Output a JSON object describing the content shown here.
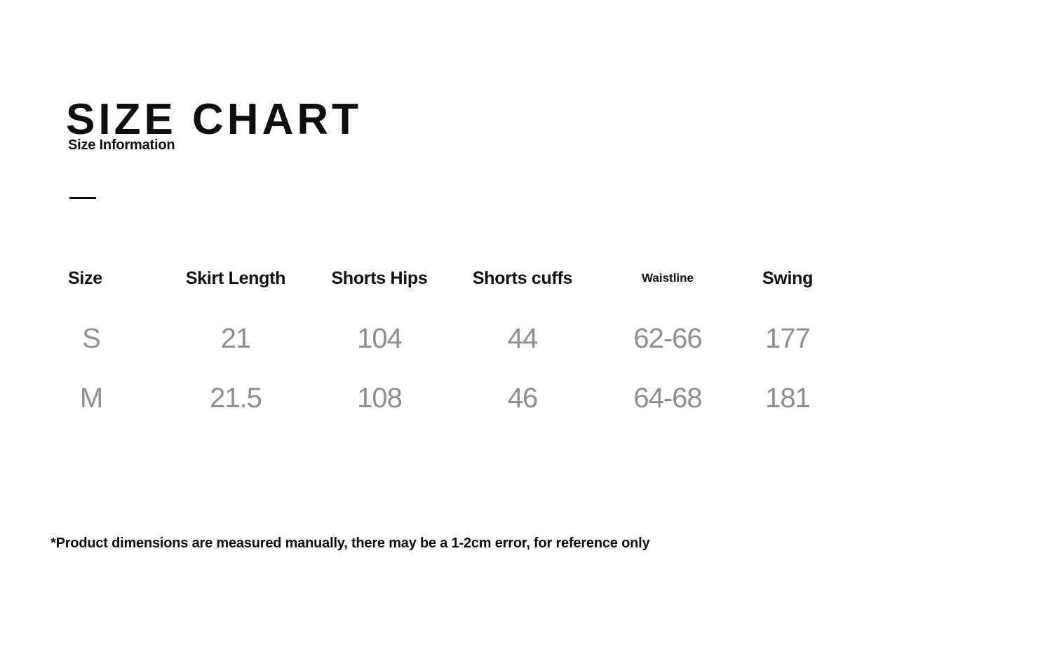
{
  "page": {
    "title": "SIZE CHART",
    "subtitle": "Size Information",
    "footnote": "*Product dimensions are measured manually, there may be a 1-2cm error, for reference only"
  },
  "table": {
    "columns": [
      "Size",
      "Skirt Length",
      "Shorts Hips",
      "Shorts cuffs",
      "Waistline",
      "Swing"
    ],
    "rows": [
      {
        "cells": [
          "S",
          "21",
          "104",
          "44",
          "62-66",
          "177"
        ]
      },
      {
        "cells": [
          "M",
          "21.5",
          "108",
          "46",
          "64-68",
          "181"
        ]
      }
    ]
  },
  "colors": {
    "heading_text": "#0e0e0e",
    "data_text": "#8d8f90",
    "background": "#ffffff"
  }
}
